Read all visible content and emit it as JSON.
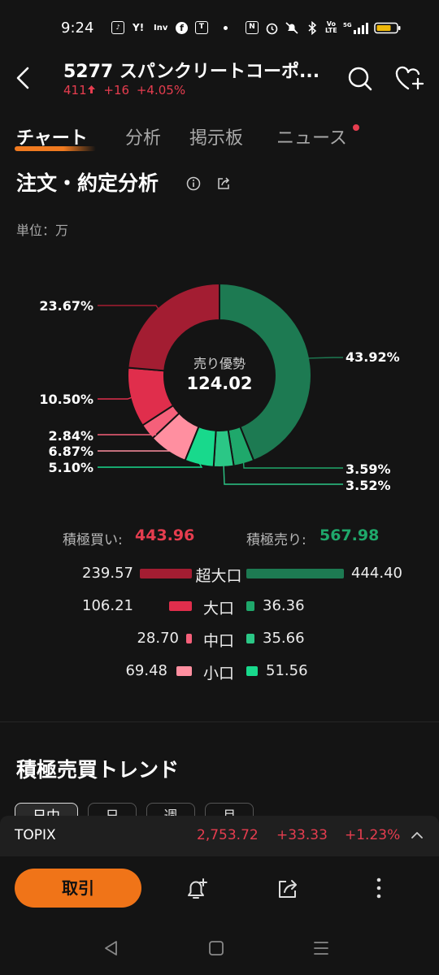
{
  "status_bar": {
    "time": "9:24",
    "icons": [
      "tiktok-icon",
      "yahoo-icon",
      "investing-icon",
      "facebook-icon",
      "teams-icon",
      "dot-icon",
      "nfc-icon",
      "alarm-icon",
      "mute-icon",
      "bluetooth-icon",
      "volte-icon",
      "5g-signal-icon",
      "battery-icon"
    ]
  },
  "header": {
    "title": "5277 スパンクリートコーポ...",
    "price": "411",
    "change": "+16",
    "change_pct": "+4.05%",
    "price_color": "#e63d4f"
  },
  "tabs": [
    {
      "label": "チャート",
      "active": true
    },
    {
      "label": "分析",
      "active": false
    },
    {
      "label": "掲示板",
      "active": false
    },
    {
      "label": "ニュース",
      "active": false,
      "badge": true
    }
  ],
  "section": {
    "title": "注文・約定分析",
    "unit": "単位：万"
  },
  "chart_data": {
    "type": "pie",
    "center_label": "売り優勢",
    "center_value": "124.02",
    "slices": [
      {
        "label": "43.92%",
        "value": 43.92,
        "color": "#1d7a52"
      },
      {
        "label": "3.59%",
        "value": 3.59,
        "color": "#1fa86b"
      },
      {
        "label": "3.52%",
        "value": 3.52,
        "color": "#2bc786"
      },
      {
        "label": "5.10%",
        "value": 5.1,
        "color": "#18d98c"
      },
      {
        "label": "6.87%",
        "value": 6.87,
        "color": "#ff8fa0"
      },
      {
        "label": "2.84%",
        "value": 2.84,
        "color": "#f5607a"
      },
      {
        "label": "10.50%",
        "value": 10.5,
        "color": "#e02e4c"
      },
      {
        "label": "23.67%",
        "value": 23.67,
        "color": "#a31d32"
      }
    ]
  },
  "summary": {
    "buy_label": "積極買い:",
    "buy_value": "443.96",
    "sell_label": "積極売り:",
    "sell_value": "567.98"
  },
  "breakdown": [
    {
      "label": "超大口",
      "buy": "239.57",
      "sell": "444.40",
      "buy_color": "#a31d32",
      "sell_color": "#1d7a52"
    },
    {
      "label": "大口",
      "buy": "106.21",
      "sell": "36.36",
      "buy_color": "#e02e4c",
      "sell_color": "#1fa86b"
    },
    {
      "label": "中口",
      "buy": "28.70",
      "sell": "35.66",
      "buy_color": "#f5607a",
      "sell_color": "#2bc786"
    },
    {
      "label": "小口",
      "buy": "69.48",
      "sell": "51.56",
      "buy_color": "#ff8fa0",
      "sell_color": "#18d98c"
    }
  ],
  "trend": {
    "title": "積極売買トレンド",
    "periods": [
      "日中",
      "日",
      "週",
      "月"
    ]
  },
  "index_bar": {
    "name": "TOPIX",
    "price": "2,753.72",
    "change": "+33.33",
    "change_pct": "+1.23%"
  },
  "actions": {
    "trade_label": "取引"
  }
}
